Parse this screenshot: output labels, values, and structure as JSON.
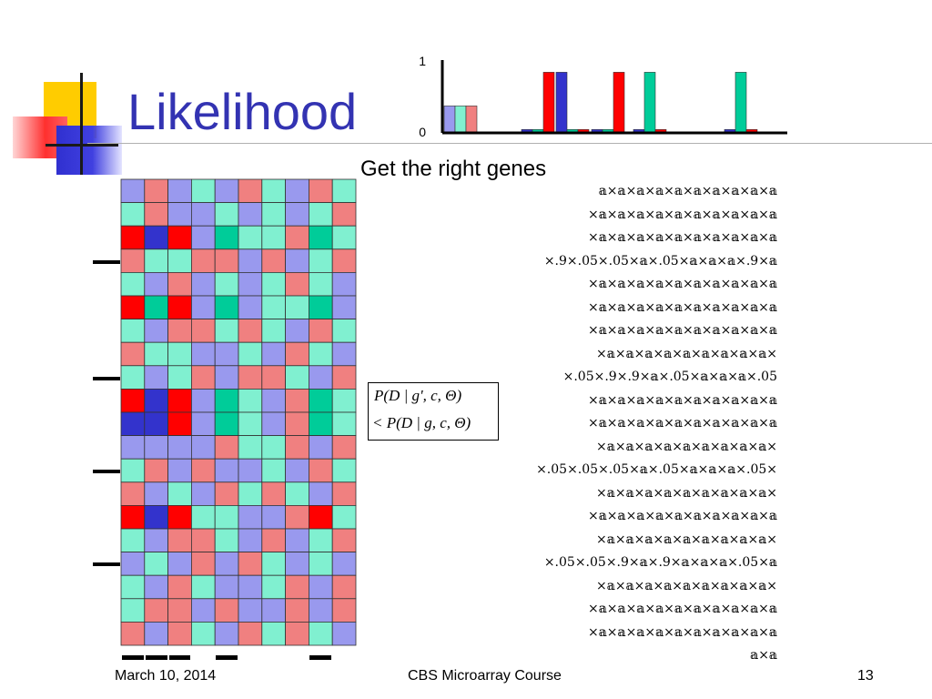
{
  "title": "Likelihood",
  "subtitle": "Get the right genes",
  "footer": {
    "date": "March 10, 2014",
    "course": "CBS Microarray Course",
    "page": "13"
  },
  "formula": {
    "line1": "P(D | g', c, Θ)",
    "line2": "< P(D | g, c, Θ)"
  },
  "colors": {
    "title": "#3333b2",
    "red": "#ff0000",
    "blue": "#3333cc",
    "green": "#00cc99",
    "light_red": "#f08080",
    "light_blue": "#9999ee",
    "light_green": "#80f0d0"
  },
  "chart_data": {
    "type": "bar",
    "ytick_labels": [
      "1",
      "0"
    ],
    "ylim": [
      0,
      1
    ],
    "groups": [
      {
        "bars": [
          {
            "color": "light_blue",
            "value": 0.4
          },
          {
            "color": "light_green",
            "value": 0.4
          },
          {
            "color": "light_red",
            "value": 0.4
          }
        ]
      },
      {
        "bars": [
          {
            "color": "blue",
            "value": 0.05
          },
          {
            "color": "green",
            "value": 0.05
          },
          {
            "color": "red",
            "value": 0.9
          }
        ]
      },
      {
        "bars": [
          {
            "color": "blue",
            "value": 0.9
          },
          {
            "color": "green",
            "value": 0.05
          },
          {
            "color": "red",
            "value": 0.05
          }
        ]
      },
      {
        "bars": [
          {
            "color": "blue",
            "value": 0.05
          },
          {
            "color": "green",
            "value": 0.05
          },
          {
            "color": "red",
            "value": 0.9
          }
        ]
      },
      {
        "bars": [
          {
            "color": "blue",
            "value": 0.05
          },
          {
            "color": "green",
            "value": 0.9
          },
          {
            "color": "red",
            "value": 0.05
          }
        ]
      },
      {
        "bars": [
          {
            "color": "blue",
            "value": 0.05
          },
          {
            "color": "green",
            "value": 0.9
          },
          {
            "color": "red",
            "value": 0.05
          }
        ]
      }
    ]
  },
  "heatmap": {
    "cells": [
      [
        "lb",
        "lr",
        "lb",
        "lg",
        "lb",
        "lr",
        "lg",
        "lb",
        "lr",
        "lg"
      ],
      [
        "lg",
        "lr",
        "lb",
        "lb",
        "lg",
        "lb",
        "lg",
        "lb",
        "lg",
        "lr"
      ],
      [
        "r",
        "b",
        "r",
        "lb",
        "g",
        "lg",
        "lg",
        "lr",
        "g",
        "lg"
      ],
      [
        "lr",
        "lg",
        "lg",
        "lr",
        "lr",
        "lb",
        "lr",
        "lb",
        "lg",
        "lr"
      ],
      [
        "lg",
        "lb",
        "lr",
        "lb",
        "lg",
        "lb",
        "lg",
        "lr",
        "lg",
        "lb"
      ],
      [
        "r",
        "g",
        "r",
        "lb",
        "g",
        "lb",
        "lg",
        "lg",
        "g",
        "lb"
      ],
      [
        "lg",
        "lb",
        "lr",
        "lr",
        "lg",
        "lr",
        "lg",
        "lb",
        "lr",
        "lg"
      ],
      [
        "lr",
        "lg",
        "lg",
        "lb",
        "lb",
        "lg",
        "lb",
        "lr",
        "lg",
        "lb"
      ],
      [
        "lg",
        "lb",
        "lg",
        "lr",
        "lb",
        "lr",
        "lr",
        "lg",
        "lb",
        "lr"
      ],
      [
        "r",
        "b",
        "r",
        "lb",
        "g",
        "lg",
        "lb",
        "lr",
        "g",
        "lg"
      ],
      [
        "b",
        "b",
        "r",
        "lb",
        "g",
        "lg",
        "lb",
        "lr",
        "g",
        "lg"
      ],
      [
        "lb",
        "lb",
        "lb",
        "lb",
        "lr",
        "lg",
        "lg",
        "lr",
        "lb",
        "lr"
      ],
      [
        "lg",
        "lr",
        "lb",
        "lr",
        "lb",
        "lb",
        "lg",
        "lb",
        "lr",
        "lg"
      ],
      [
        "lr",
        "lb",
        "lg",
        "lb",
        "lr",
        "lg",
        "lr",
        "lg",
        "lb",
        "lr"
      ],
      [
        "r",
        "b",
        "r",
        "lg",
        "lg",
        "lb",
        "lb",
        "lr",
        "r",
        "lg"
      ],
      [
        "lg",
        "lb",
        "lr",
        "lr",
        "lg",
        "lb",
        "lr",
        "lb",
        "lg",
        "lr"
      ],
      [
        "lb",
        "lg",
        "lb",
        "lr",
        "lb",
        "lr",
        "lg",
        "lb",
        "lg",
        "lb"
      ],
      [
        "lg",
        "lb",
        "lr",
        "lg",
        "lb",
        "lb",
        "lg",
        "lr",
        "lb",
        "lr"
      ],
      [
        "lg",
        "lr",
        "lr",
        "lb",
        "lr",
        "lb",
        "lb",
        "lr",
        "lb",
        "lr"
      ],
      [
        "lr",
        "lb",
        "lr",
        "lg",
        "lb",
        "lr",
        "lg",
        "lr",
        "lg",
        "lb"
      ]
    ],
    "marked_rows": [
      3,
      8,
      12,
      16
    ],
    "marked_cols": [
      0,
      1,
      2,
      4,
      8
    ]
  },
  "probability_rows": [
    "𝕒×𝕒×𝕒×𝕒×𝕒×𝕒×𝕒×𝕒×𝕒×𝕒",
    "×𝕒×𝕒×𝕒×𝕒×𝕒×𝕒×𝕒×𝕒×𝕒×𝕒",
    "×𝕒×𝕒×𝕒×𝕒×𝕒×𝕒×𝕒×𝕒×𝕒×𝕒",
    "×.9×.05×.05×𝕒×.05×𝕒×𝕒×𝕒×.9×𝕒",
    "×𝕒×𝕒×𝕒×𝕒×𝕒×𝕒×𝕒×𝕒×𝕒×𝕒",
    "×𝕒×𝕒×𝕒×𝕒×𝕒×𝕒×𝕒×𝕒×𝕒×𝕒",
    "×𝕒×𝕒×𝕒×𝕒×𝕒×𝕒×𝕒×𝕒×𝕒×𝕒",
    "×𝕒×𝕒×𝕒×𝕒×𝕒×𝕒×𝕒×𝕒×𝕒×",
    "×.05×.9×.9×𝕒×.05×𝕒×𝕒×𝕒×.05",
    "×𝕒×𝕒×𝕒×𝕒×𝕒×𝕒×𝕒×𝕒×𝕒×𝕒",
    "×𝕒×𝕒×𝕒×𝕒×𝕒×𝕒×𝕒×𝕒×𝕒×𝕒",
    "×𝕒×𝕒×𝕒×𝕒×𝕒×𝕒×𝕒×𝕒×𝕒×",
    "×.05×.05×.05×𝕒×.05×𝕒×𝕒×𝕒×.05×",
    "×𝕒×𝕒×𝕒×𝕒×𝕒×𝕒×𝕒×𝕒×𝕒×",
    "×𝕒×𝕒×𝕒×𝕒×𝕒×𝕒×𝕒×𝕒×𝕒×𝕒",
    "×𝕒×𝕒×𝕒×𝕒×𝕒×𝕒×𝕒×𝕒×𝕒×",
    "×.05×.05×.9×𝕒×.9×𝕒×𝕒×𝕒×.05×𝕒",
    "×𝕒×𝕒×𝕒×𝕒×𝕒×𝕒×𝕒×𝕒×𝕒×",
    "×𝕒×𝕒×𝕒×𝕒×𝕒×𝕒×𝕒×𝕒×𝕒×𝕒",
    "×𝕒×𝕒×𝕒×𝕒×𝕒×𝕒×𝕒×𝕒×𝕒×𝕒",
    "𝕒×𝕒"
  ]
}
